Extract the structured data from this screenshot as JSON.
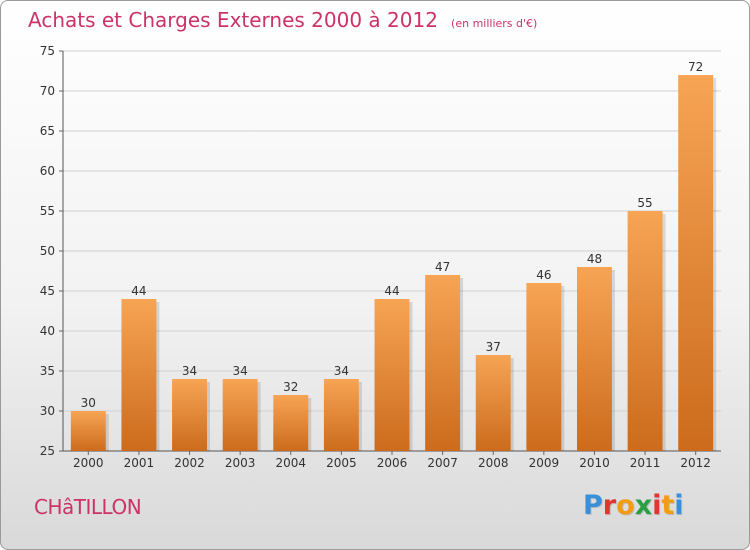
{
  "header": {
    "title": "Achats et Charges Externes 2000 à 2012",
    "subtitle": "(en milliers d'€)"
  },
  "footer": {
    "town": "CHâTILLON",
    "brand": "Proxiti",
    "brand_colors": [
      "#3a8fd9",
      "#e3342f",
      "#f39c12",
      "#2c9f45",
      "#e3342f",
      "#f39c12",
      "#3a8fd9"
    ]
  },
  "chart_data": {
    "type": "bar",
    "title": "Achats et Charges Externes 2000 à 2012",
    "subtitle": "(en milliers d'€)",
    "xlabel": "",
    "ylabel": "",
    "categories": [
      "2000",
      "2001",
      "2002",
      "2003",
      "2004",
      "2005",
      "2006",
      "2007",
      "2008",
      "2009",
      "2010",
      "2011",
      "2012"
    ],
    "values": [
      30,
      44,
      34,
      34,
      32,
      34,
      44,
      47,
      37,
      46,
      48,
      55,
      72
    ],
    "ylim": [
      25,
      75
    ],
    "yticks": [
      25,
      30,
      35,
      40,
      45,
      50,
      55,
      60,
      65,
      70,
      75
    ],
    "grid": true,
    "bar_color_top": "#f7a455",
    "bar_color_bottom": "#cc6b1c",
    "text_color": "#333333",
    "grid_color": "#d0d0d0"
  }
}
